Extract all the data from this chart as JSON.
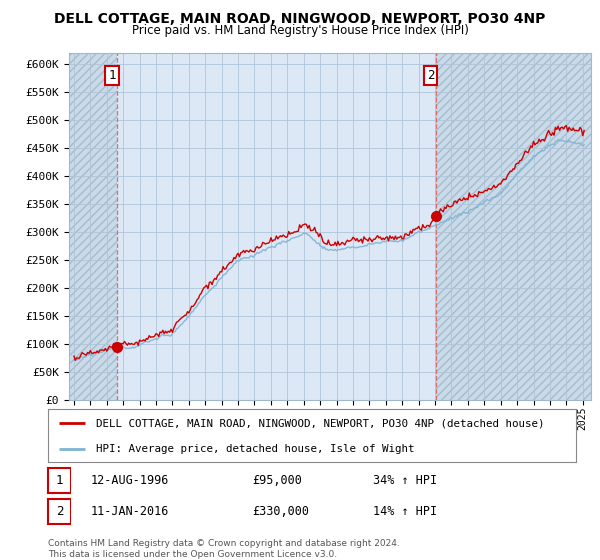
{
  "title": "DELL COTTAGE, MAIN ROAD, NINGWOOD, NEWPORT, PO30 4NP",
  "subtitle": "Price paid vs. HM Land Registry's House Price Index (HPI)",
  "ylabel_ticks": [
    0,
    50000,
    100000,
    150000,
    200000,
    250000,
    300000,
    350000,
    400000,
    450000,
    500000,
    550000,
    600000
  ],
  "ylim": [
    0,
    620000
  ],
  "xlim_start": 1993.7,
  "xlim_end": 2025.5,
  "sale1_year": 1996.62,
  "sale1_price": 95000,
  "sale2_year": 2016.03,
  "sale2_price": 330000,
  "hpi_color": "#7fb3d3",
  "price_color": "#cc0000",
  "legend_line1": "DELL COTTAGE, MAIN ROAD, NINGWOOD, NEWPORT, PO30 4NP (detached house)",
  "legend_line2": "HPI: Average price, detached house, Isle of Wight",
  "table_row1": [
    "1",
    "12-AUG-1996",
    "£95,000",
    "34% ↑ HPI"
  ],
  "table_row2": [
    "2",
    "11-JAN-2016",
    "£330,000",
    "14% ↑ HPI"
  ],
  "footnote": "Contains HM Land Registry data © Crown copyright and database right 2024.\nThis data is licensed under the Open Government Licence v3.0.",
  "bg_color": "#ffffff",
  "plot_bg_color": "#dce8f5",
  "hatch_color": "#c8d8e8",
  "grid_color": "#b0c4d8",
  "vline_color": "#e06060"
}
